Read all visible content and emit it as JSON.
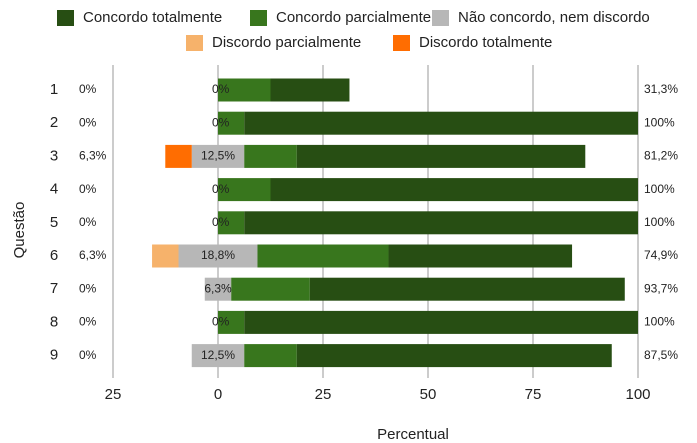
{
  "chart_data": {
    "type": "diverging-bar",
    "y_label": "Questão",
    "x_label": "Percentual",
    "categories": [
      "1",
      "2",
      "3",
      "4",
      "5",
      "6",
      "7",
      "8",
      "9"
    ],
    "series": [
      {
        "name": "Concordo totalmente",
        "color": "#274e13",
        "values": [
          18.8,
          93.75,
          68.7,
          87.5,
          93.75,
          43.7,
          75,
          93.75,
          75
        ]
      },
      {
        "name": "Concordo parcialmente",
        "color": "#38761d",
        "values": [
          12.5,
          6.25,
          12.5,
          12.5,
          6.25,
          31.2,
          18.7,
          6.25,
          12.5
        ]
      },
      {
        "name": "Não concordo, nem discordo",
        "color": "#b7b7b7",
        "values": [
          0,
          0,
          12.5,
          0,
          0,
          18.8,
          6.3,
          0,
          12.5
        ]
      },
      {
        "name": "Discordo parcialmente",
        "color": "#f6b26b",
        "values": [
          0,
          0,
          0,
          0,
          0,
          6.3,
          0,
          0,
          0
        ]
      },
      {
        "name": "Discordo totalmente",
        "color": "#ff6d01",
        "values": [
          0,
          0,
          6.3,
          0,
          0,
          0,
          0,
          0,
          0
        ]
      }
    ],
    "left_labels": [
      "0%",
      "0%",
      "6,3%",
      "0%",
      "0%",
      "6,3%",
      "0%",
      "0%",
      "0%"
    ],
    "center_labels": [
      "0%",
      "0%",
      "12,5%",
      "0%",
      "0%",
      "18,8%",
      "6,3%",
      "0%",
      "12,5%"
    ],
    "right_labels": [
      "31,3%",
      "100%",
      "81,2%",
      "100%",
      "100%",
      "74,9%",
      "93,7%",
      "100%",
      "87,5%"
    ],
    "xlim": [
      -25,
      100
    ],
    "xticks": [
      {
        "value": -25,
        "label": "25"
      },
      0,
      25,
      50,
      75,
      100
    ],
    "grid": true
  }
}
